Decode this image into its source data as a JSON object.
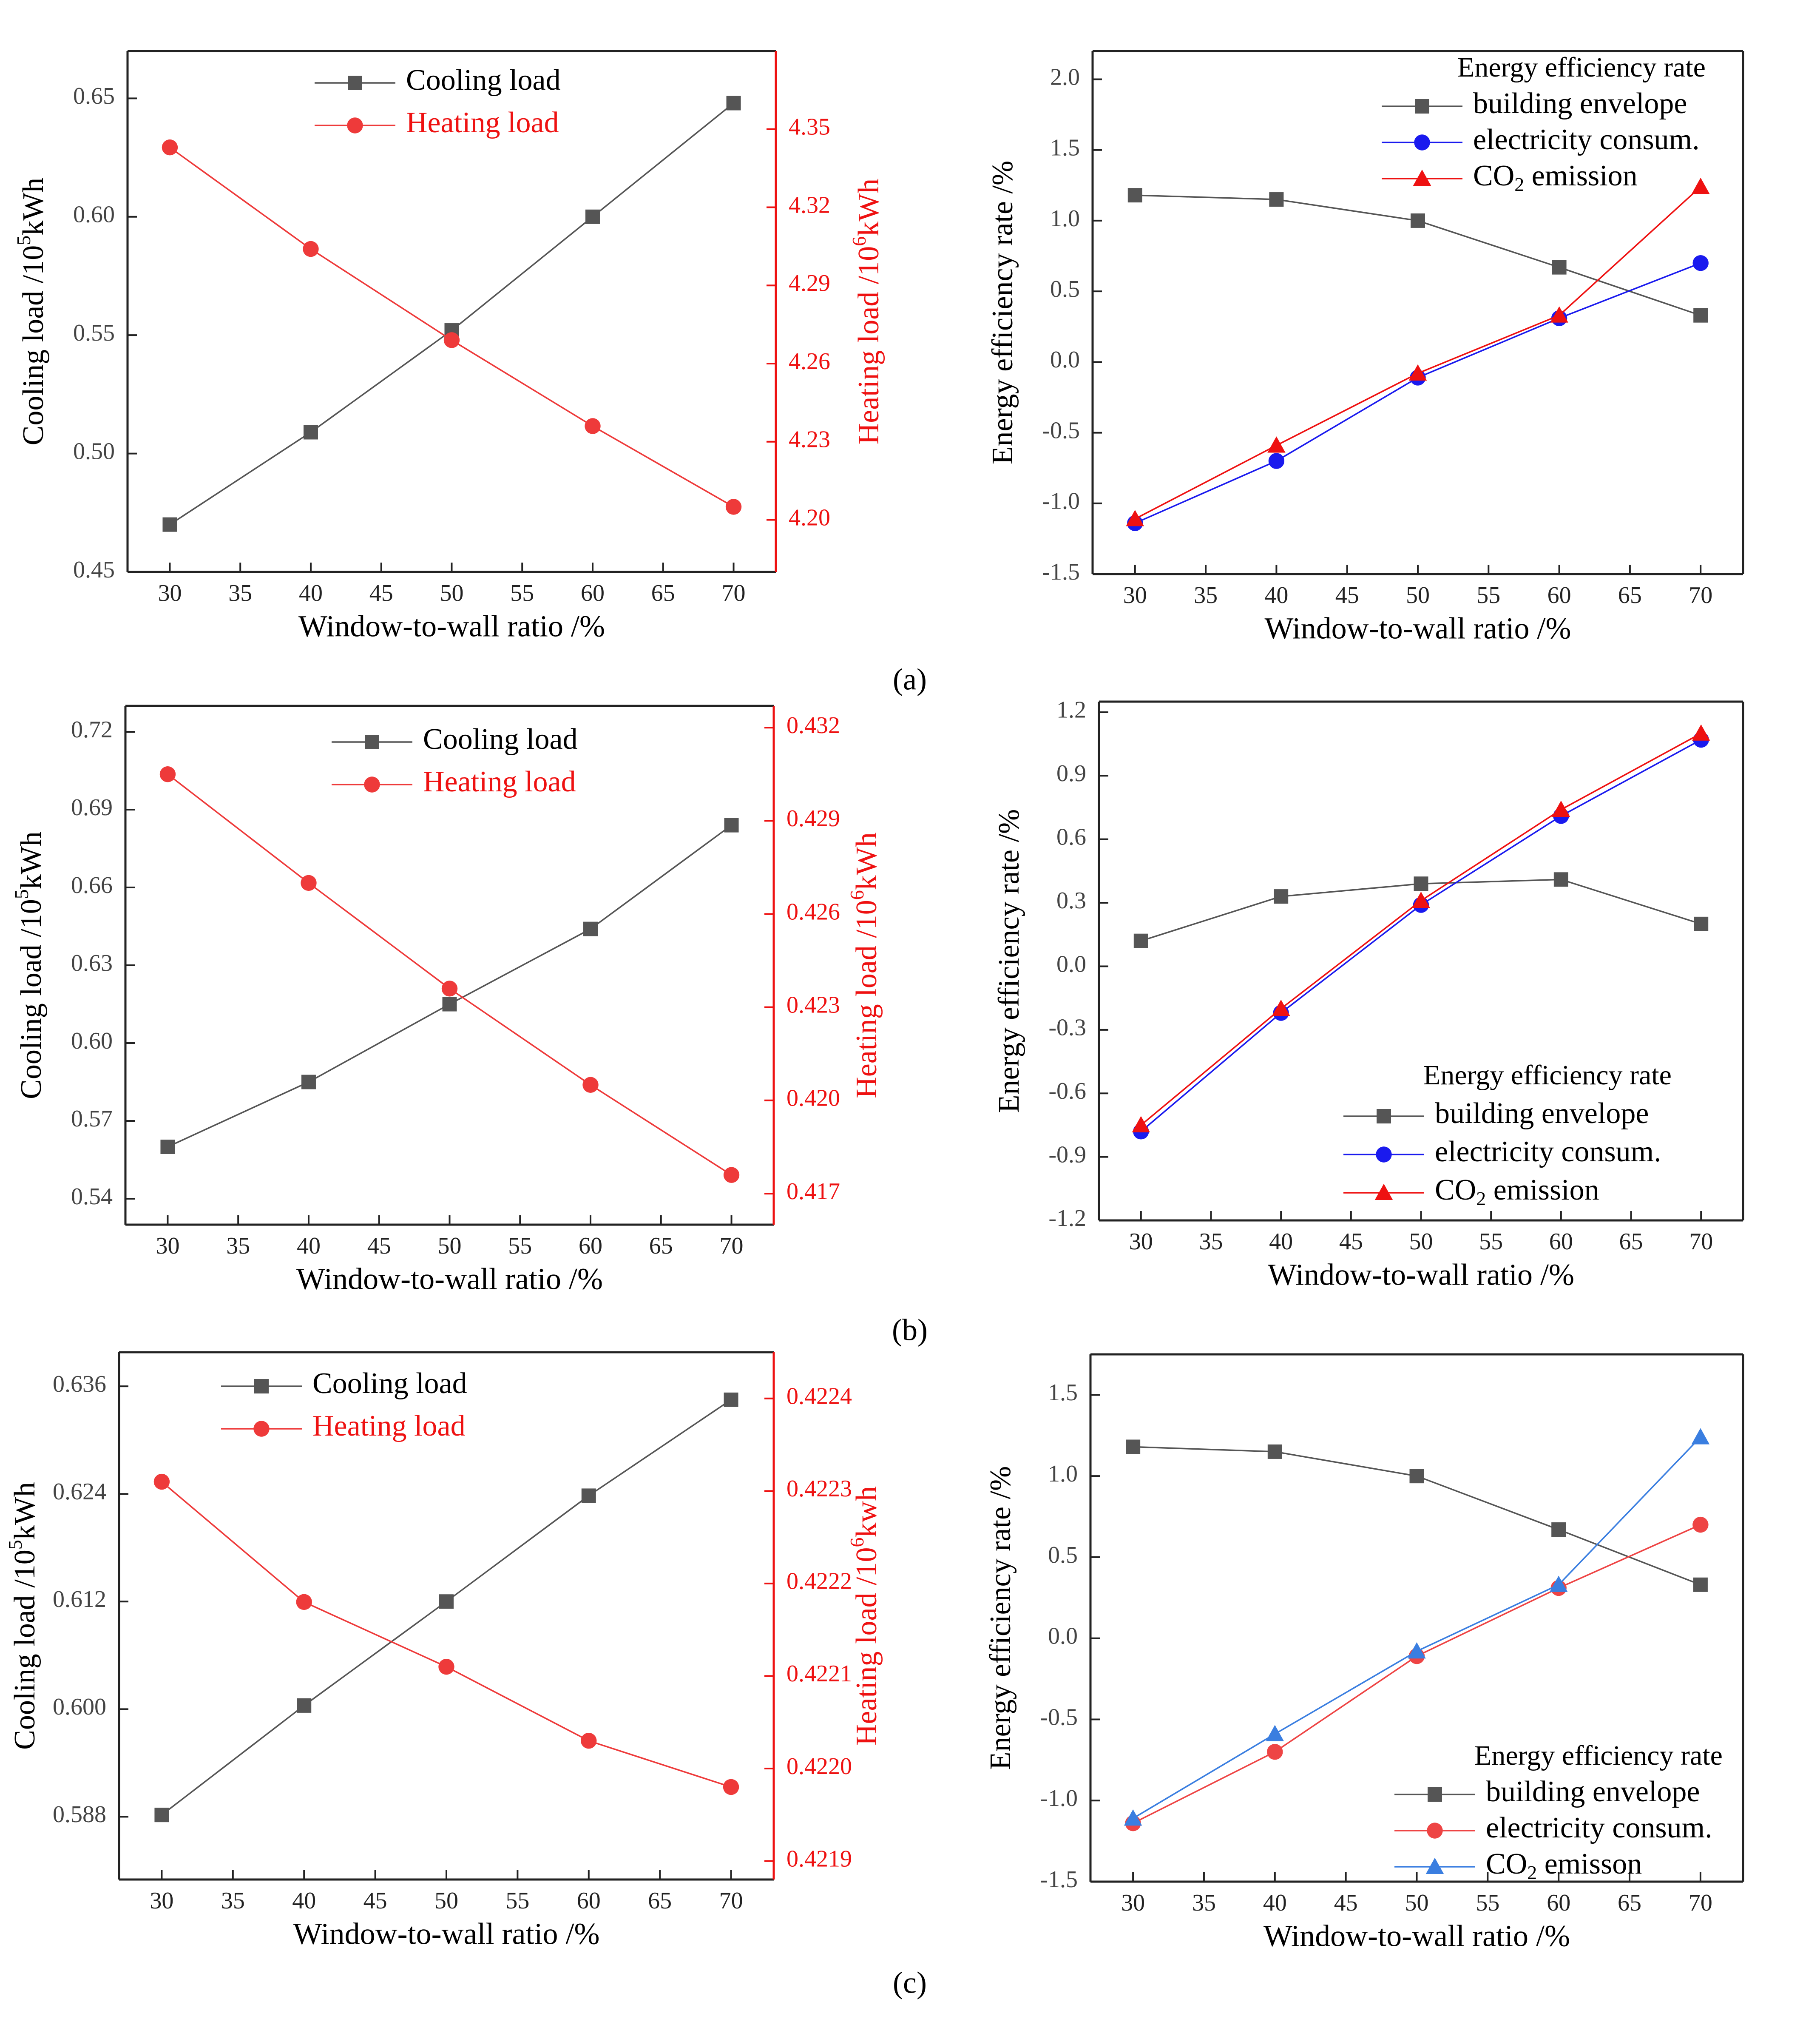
{
  "figure": {
    "panel_labels": [
      "(a)",
      "(b)",
      "(c)"
    ]
  },
  "colors": {
    "cooling": "#555555",
    "heating": "#ee3a3a",
    "envelope": "#555555",
    "electricity_blue": "#1a1aee",
    "co2_red": "#ee1111",
    "electricity_red": "#ee4444",
    "co2_blue": "#3a7ee0",
    "axis_red": "#ee1111"
  },
  "chart_data": [
    {
      "id": "a-left",
      "type": "line",
      "panel": "a",
      "x": [
        30,
        40,
        50,
        60,
        70
      ],
      "xlabel": "Window-to-wall ratio /%",
      "xlim": [
        27,
        73
      ],
      "xticks": [
        30,
        35,
        40,
        45,
        50,
        55,
        60,
        65,
        70
      ],
      "ylabel": "Cooling load /10^5kWh",
      "ylabel_base": "Cooling load /10",
      "ylabel_sup": "5",
      "ylabel_tail": "kWh",
      "ylim": [
        0.45,
        0.67
      ],
      "yticks": [
        "0.45",
        "0.50",
        "0.55",
        "0.60",
        "0.65"
      ],
      "y2label": "Heating load /10^6kWh",
      "y2label_base": "Heating load /10",
      "y2label_sup": "6",
      "y2label_tail": "kWh",
      "y2lim": [
        4.18,
        4.38
      ],
      "y2ticks": [
        "4.20",
        "4.23",
        "4.26",
        "4.29",
        "4.32",
        "4.35"
      ],
      "legend_position": "top-center",
      "series": [
        {
          "name": "Cooling load",
          "axis": "left",
          "marker": "square",
          "color_key": "cooling",
          "values": [
            0.47,
            0.509,
            0.552,
            0.6,
            0.648
          ]
        },
        {
          "name": "Heating load",
          "axis": "right",
          "marker": "circle",
          "color_key": "heating",
          "values": [
            4.343,
            4.304,
            4.269,
            4.236,
            4.205
          ]
        }
      ]
    },
    {
      "id": "a-right",
      "type": "line",
      "panel": "a",
      "x": [
        30,
        40,
        50,
        60,
        70
      ],
      "xlabel": "Window-to-wall ratio /%",
      "xlim": [
        27,
        73
      ],
      "xticks": [
        30,
        35,
        40,
        45,
        50,
        55,
        60,
        65,
        70
      ],
      "ylabel": "Energy efficiency rate /%",
      "ylim": [
        -1.5,
        2.2
      ],
      "yticks": [
        "-1.5",
        "-1.0",
        "-0.5",
        "0.0",
        "0.5",
        "1.0",
        "1.5",
        "2.0"
      ],
      "legend_title": "Energy efficiency rate",
      "legend_position": "top-right",
      "series": [
        {
          "name": "building envelope",
          "marker": "square",
          "color_key": "envelope",
          "values": [
            1.18,
            1.15,
            1.0,
            0.67,
            0.33
          ]
        },
        {
          "name": "electricity consum.",
          "marker": "circle",
          "color_key": "electricity_blue",
          "values": [
            -1.14,
            -0.7,
            -0.11,
            0.31,
            0.7
          ]
        },
        {
          "name": "CO2 emission",
          "name_base": "CO",
          "name_sub": "2",
          "name_tail": " emission",
          "marker": "triangle",
          "color_key": "co2_red",
          "values": [
            -1.11,
            -0.59,
            -0.08,
            0.33,
            1.24
          ]
        }
      ]
    },
    {
      "id": "b-left",
      "type": "line",
      "panel": "b",
      "x": [
        30,
        40,
        50,
        60,
        70
      ],
      "xlabel": "Window-to-wall ratio /%",
      "xlim": [
        27,
        73
      ],
      "xticks": [
        30,
        35,
        40,
        45,
        50,
        55,
        60,
        65,
        70
      ],
      "ylabel": "Cooling load /10^5kWh",
      "ylabel_base": "Cooling load /10",
      "ylabel_sup": "5",
      "ylabel_tail": "kWh",
      "ylim": [
        0.53,
        0.73
      ],
      "yticks": [
        "0.54",
        "0.57",
        "0.60",
        "0.63",
        "0.66",
        "0.69",
        "0.72"
      ],
      "y2label": "Heating load /10^6kWh",
      "y2label_base": "Heating load /10",
      "y2label_sup": "6",
      "y2label_tail": "kWh",
      "y2lim": [
        0.416,
        0.4327
      ],
      "y2ticks": [
        "0.417",
        "0.420",
        "0.423",
        "0.426",
        "0.429",
        "0.432"
      ],
      "legend_position": "top-center",
      "series": [
        {
          "name": "Cooling load",
          "axis": "left",
          "marker": "square",
          "color_key": "cooling",
          "values": [
            0.56,
            0.585,
            0.615,
            0.644,
            0.684
          ]
        },
        {
          "name": "Heating load",
          "axis": "right",
          "marker": "circle",
          "color_key": "heating",
          "values": [
            0.4305,
            0.427,
            0.4236,
            0.4205,
            0.4176
          ]
        }
      ]
    },
    {
      "id": "b-right",
      "type": "line",
      "panel": "b",
      "x": [
        30,
        40,
        50,
        60,
        70
      ],
      "xlabel": "Window-to-wall ratio /%",
      "xlim": [
        27,
        73
      ],
      "xticks": [
        30,
        35,
        40,
        45,
        50,
        55,
        60,
        65,
        70
      ],
      "ylabel": "Energy efficiency rate /%",
      "ylim": [
        -1.2,
        1.25
      ],
      "yticks": [
        "-1.2",
        "-0.9",
        "-0.6",
        "-0.3",
        "0.0",
        "0.3",
        "0.6",
        "0.9",
        "1.2"
      ],
      "legend_title": "Energy efficiency rate",
      "legend_position": "bottom-right",
      "series": [
        {
          "name": "building envelope",
          "marker": "square",
          "color_key": "envelope",
          "values": [
            0.12,
            0.33,
            0.39,
            0.41,
            0.2
          ]
        },
        {
          "name": "electricity consum.",
          "marker": "circle",
          "color_key": "electricity_blue",
          "values": [
            -0.78,
            -0.22,
            0.29,
            0.71,
            1.07
          ]
        },
        {
          "name": "CO2 emission",
          "name_base": "CO",
          "name_sub": "2",
          "name_tail": " emission",
          "marker": "triangle",
          "color_key": "co2_red",
          "values": [
            -0.75,
            -0.2,
            0.31,
            0.74,
            1.1
          ]
        }
      ]
    },
    {
      "id": "c-left",
      "type": "line",
      "panel": "c",
      "x": [
        30,
        40,
        50,
        60,
        70
      ],
      "xlabel": "Window-to-wall ratio /%",
      "xlim": [
        27,
        73
      ],
      "xticks": [
        30,
        35,
        40,
        45,
        50,
        55,
        60,
        65,
        70
      ],
      "ylabel": "Cooling load /10^5kWh",
      "ylabel_base": "Cooling load /10",
      "ylabel_sup": "5",
      "ylabel_tail": "kWh",
      "ylim": [
        0.581,
        0.6398
      ],
      "yticks": [
        "0.588",
        "0.600",
        "0.612",
        "0.624",
        "0.636"
      ],
      "y2label": "Heating load /10^6kwh",
      "y2label_base": "Heating load /10",
      "y2label_sup": "6",
      "y2label_tail": "kwh",
      "y2lim": [
        0.42188,
        0.42245
      ],
      "y2ticks": [
        "0.4219",
        "0.4220",
        "0.4221",
        "0.4222",
        "0.4223",
        "0.4224"
      ],
      "legend_position": "top-center",
      "series": [
        {
          "name": "Cooling load",
          "axis": "left",
          "marker": "square",
          "color_key": "cooling",
          "values": [
            0.5882,
            0.6004,
            0.612,
            0.6238,
            0.6345
          ]
        },
        {
          "name": "Heating load",
          "axis": "right",
          "marker": "circle",
          "color_key": "heating",
          "values": [
            0.42231,
            0.42218,
            0.42211,
            0.42203,
            0.42198
          ]
        }
      ]
    },
    {
      "id": "c-right",
      "type": "line",
      "panel": "c",
      "x": [
        30,
        40,
        50,
        60,
        70
      ],
      "xlabel": "Window-to-wall ratio /%",
      "xlim": [
        27,
        73
      ],
      "xticks": [
        30,
        35,
        40,
        45,
        50,
        55,
        60,
        65,
        70
      ],
      "ylabel": "Energy efficiency rate /%",
      "ylim": [
        -1.5,
        1.75
      ],
      "yticks": [
        "-1.5",
        "-1.0",
        "-0.5",
        "0.0",
        "0.5",
        "1.0",
        "1.5"
      ],
      "legend_title": "Energy efficiency rate",
      "legend_position": "bottom-right",
      "series": [
        {
          "name": "building envelope",
          "marker": "square",
          "color_key": "envelope",
          "values": [
            1.18,
            1.15,
            1.0,
            0.67,
            0.33
          ]
        },
        {
          "name": "electricity consum.",
          "marker": "circle",
          "color_key": "electricity_red",
          "values": [
            -1.14,
            -0.7,
            -0.11,
            0.31,
            0.7
          ]
        },
        {
          "name": "CO2 emisson",
          "name_base": "CO",
          "name_sub": "2",
          "name_tail": " emisson",
          "marker": "triangle",
          "color_key": "co2_blue",
          "values": [
            -1.11,
            -0.59,
            -0.08,
            0.33,
            1.24
          ]
        }
      ]
    }
  ]
}
